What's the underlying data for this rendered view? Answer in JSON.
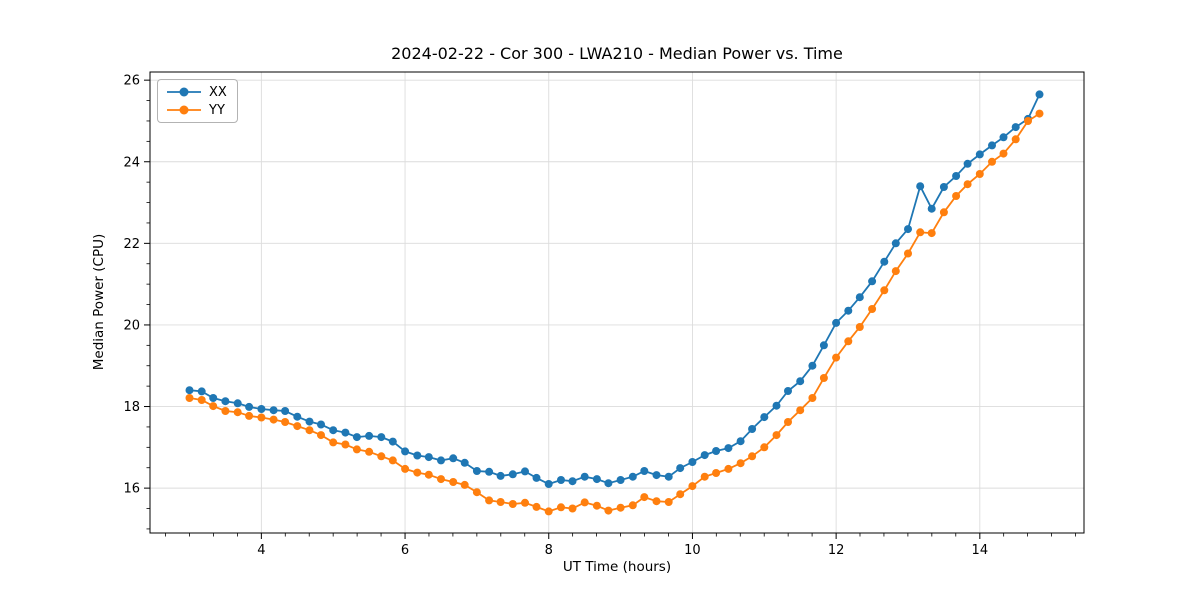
{
  "figure": {
    "title": "2024-02-22 - Cor 300 - LWA210 - Median Power vs. Time",
    "xlabel": "UT Time (hours)",
    "ylabel": "Median Power (CPU)"
  },
  "chart_data": {
    "type": "line",
    "title": "2024-02-22 - Cor 300 - LWA210 - Median Power vs. Time",
    "xlabel": "UT Time (hours)",
    "ylabel": "Median Power (CPU)",
    "xlim": [
      2.45,
      15.45
    ],
    "ylim": [
      14.9,
      26.2
    ],
    "x_ticks": [
      4,
      6,
      8,
      10,
      12,
      14
    ],
    "y_ticks": [
      16,
      18,
      20,
      22,
      24,
      26
    ],
    "x_minor_step": 0.3333,
    "y_minor_step": 0.5,
    "grid": true,
    "grid_color": "#dcdcdc",
    "spine_color": "#000000",
    "legend_position": "upper left",
    "marker": "circle",
    "x": [
      3.0,
      3.17,
      3.33,
      3.5,
      3.67,
      3.83,
      4.0,
      4.17,
      4.33,
      4.5,
      4.67,
      4.83,
      5.0,
      5.17,
      5.33,
      5.5,
      5.67,
      5.83,
      6.0,
      6.17,
      6.33,
      6.5,
      6.67,
      6.83,
      7.0,
      7.17,
      7.33,
      7.5,
      7.67,
      7.83,
      8.0,
      8.17,
      8.33,
      8.5,
      8.67,
      8.83,
      9.0,
      9.17,
      9.33,
      9.5,
      9.67,
      9.83,
      10.0,
      10.17,
      10.33,
      10.5,
      10.67,
      10.83,
      11.0,
      11.17,
      11.33,
      11.5,
      11.67,
      11.83,
      12.0,
      12.17,
      12.33,
      12.5,
      12.67,
      12.83,
      13.0,
      13.17,
      13.33,
      13.5,
      13.67,
      13.83,
      14.0,
      14.17,
      14.33,
      14.5,
      14.67,
      14.83
    ],
    "series": [
      {
        "name": "XX",
        "color": "#1f77b4",
        "values": [
          18.4,
          18.37,
          18.21,
          18.13,
          18.08,
          17.99,
          17.94,
          17.91,
          17.89,
          17.75,
          17.63,
          17.56,
          17.42,
          17.36,
          17.25,
          17.28,
          17.25,
          17.14,
          16.9,
          16.8,
          16.76,
          16.68,
          16.73,
          16.62,
          16.42,
          16.4,
          16.3,
          16.34,
          16.41,
          16.25,
          16.1,
          16.2,
          16.17,
          16.28,
          16.22,
          16.12,
          16.2,
          16.28,
          16.42,
          16.32,
          16.28,
          16.49,
          16.64,
          16.81,
          16.91,
          16.98,
          17.15,
          17.45,
          17.74,
          18.02,
          18.38,
          18.62,
          19.0,
          19.5,
          20.05,
          20.35,
          20.68,
          21.07,
          21.55,
          22.0,
          22.35,
          23.4,
          22.85,
          23.38,
          23.65,
          23.95,
          24.18,
          24.4,
          24.6,
          24.85,
          25.05,
          25.65
        ]
      },
      {
        "name": "YY",
        "color": "#ff7f0e",
        "values": [
          18.21,
          18.16,
          18.01,
          17.89,
          17.86,
          17.77,
          17.73,
          17.68,
          17.62,
          17.52,
          17.42,
          17.3,
          17.12,
          17.07,
          16.95,
          16.89,
          16.78,
          16.68,
          16.47,
          16.38,
          16.33,
          16.22,
          16.15,
          16.08,
          15.9,
          15.7,
          15.66,
          15.61,
          15.64,
          15.54,
          15.43,
          15.53,
          15.5,
          15.65,
          15.57,
          15.45,
          15.52,
          15.58,
          15.78,
          15.68,
          15.66,
          15.85,
          16.05,
          16.28,
          16.37,
          16.47,
          16.61,
          16.78,
          17.0,
          17.3,
          17.62,
          17.91,
          18.21,
          18.7,
          19.2,
          19.6,
          19.95,
          20.39,
          20.85,
          21.32,
          21.75,
          22.27,
          22.25,
          22.76,
          23.16,
          23.45,
          23.7,
          24.0,
          24.2,
          24.55,
          25.0,
          25.18
        ]
      }
    ]
  }
}
